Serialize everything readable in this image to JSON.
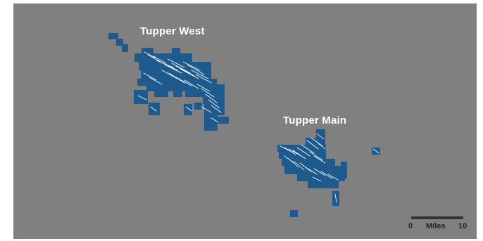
{
  "map": {
    "background_color": "#808080",
    "frame_color": "#ffffff",
    "lease_fill_color": "#1f5a8e",
    "well_line_color": "#ffffff"
  },
  "fields": [
    {
      "id": "tupper-west",
      "label": "Tupper West"
    },
    {
      "id": "tupper-main",
      "label": "Tupper Main"
    }
  ],
  "scale_bar": {
    "start_label": "0",
    "unit_label": "Miles",
    "end_label": "10",
    "bar_color": "#333333"
  }
}
